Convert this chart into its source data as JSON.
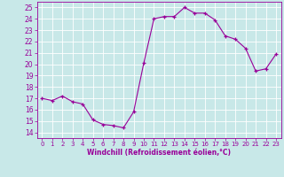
{
  "x": [
    0,
    1,
    2,
    3,
    4,
    5,
    6,
    7,
    8,
    9,
    10,
    11,
    12,
    13,
    14,
    15,
    16,
    17,
    18,
    19,
    20,
    21,
    22,
    23
  ],
  "y": [
    17.0,
    16.8,
    17.2,
    16.7,
    16.5,
    15.1,
    14.7,
    14.6,
    14.4,
    15.8,
    20.1,
    24.0,
    24.2,
    24.2,
    25.0,
    24.5,
    24.5,
    23.9,
    22.5,
    22.2,
    21.4,
    19.4,
    19.6,
    20.9
  ],
  "line_color": "#990099",
  "marker": "+",
  "marker_size": 3,
  "background_color": "#c8e8e8",
  "grid_color": "#b0d8d8",
  "xlabel": "Windchill (Refroidissement éolien,°C)",
  "xlim": [
    -0.5,
    23.5
  ],
  "ylim": [
    13.5,
    25.5
  ],
  "yticks": [
    14,
    15,
    16,
    17,
    18,
    19,
    20,
    21,
    22,
    23,
    24,
    25
  ],
  "xticks": [
    0,
    1,
    2,
    3,
    4,
    5,
    6,
    7,
    8,
    9,
    10,
    11,
    12,
    13,
    14,
    15,
    16,
    17,
    18,
    19,
    20,
    21,
    22,
    23
  ]
}
